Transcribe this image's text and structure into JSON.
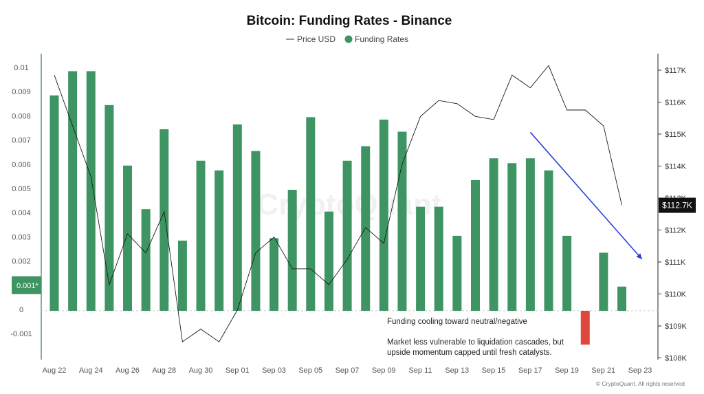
{
  "chart_data": {
    "type": "bar",
    "title": "Bitcoin: Funding Rates - Binance",
    "legend": [
      {
        "label": "Price USD",
        "marker": "line"
      },
      {
        "label": "Funding Rates",
        "marker": "dot"
      }
    ],
    "legend_placement": "top-center",
    "y_left": {
      "ticks": [
        "0.01",
        "0.009",
        "0.008",
        "0.007",
        "0.006",
        "0.005",
        "0.004",
        "0.003",
        "0.002",
        "0.001*",
        "0",
        "-0.001"
      ],
      "range": [
        -0.0015,
        0.0101
      ],
      "highlight_tick": "0.001*"
    },
    "y_right": {
      "ticks": [
        "$117K",
        "$116K",
        "$115K",
        "$114K",
        "$113K",
        "$112K",
        "$111K",
        "$110K",
        "$109K",
        "$108K"
      ],
      "range": [
        107800,
        117700
      ],
      "current_value_label": "$112.7K"
    },
    "x_ticks": [
      "Aug 22",
      "Aug 24",
      "Aug 26",
      "Aug 28",
      "Aug 30",
      "Sep 01",
      "Sep 03",
      "Sep 05",
      "Sep 07",
      "Sep 09",
      "Sep 11",
      "Sep 13",
      "Sep 15",
      "Sep 17",
      "Sep 19",
      "Sep 21",
      "Sep 23"
    ],
    "series": [
      {
        "name": "Funding Rates",
        "axis": "left",
        "values": [
          0.0089,
          0.0099,
          0.0099,
          0.0085,
          0.006,
          0.0042,
          0.0075,
          0.0029,
          0.0062,
          0.0058,
          0.0077,
          0.0066,
          0.003,
          0.005,
          0.008,
          0.0041,
          0.0062,
          0.0068,
          0.0079,
          0.0074,
          0.0043,
          0.0043,
          0.0031,
          0.0054,
          0.0063,
          0.0061,
          0.0063,
          0.0058,
          0.0031,
          -0.0014,
          0.0024,
          0.001
        ],
        "colors": {
          "positive": "#3f9463",
          "negative": "#e0473c"
        }
      },
      {
        "name": "Price USD",
        "axis": "right",
        "values": [
          116800,
          115200,
          113600,
          110200,
          111800,
          111200,
          112500,
          108400,
          108800,
          108400,
          109400,
          111200,
          111700,
          110700,
          110700,
          110200,
          111000,
          112000,
          111500,
          114000,
          115500,
          116000,
          115900,
          115500,
          115400,
          116800,
          116400,
          117100,
          115700,
          115700,
          115200,
          112700
        ],
        "color": "#1a1a1a"
      }
    ],
    "trend_arrow": {
      "from": {
        "index": 26,
        "price": 115000
      },
      "to": {
        "index": 32.1,
        "price": 111000
      },
      "color": "#2940d6"
    },
    "annotations": [
      "Funding cooling toward neutral/negative",
      "Market less vulnerable to liquidation cascades, but",
      "upside momentum capped until fresh catalysts."
    ],
    "watermark": "CryptoQuant",
    "footer": "© CryptoQuant. All rights reserved",
    "grid": false
  }
}
